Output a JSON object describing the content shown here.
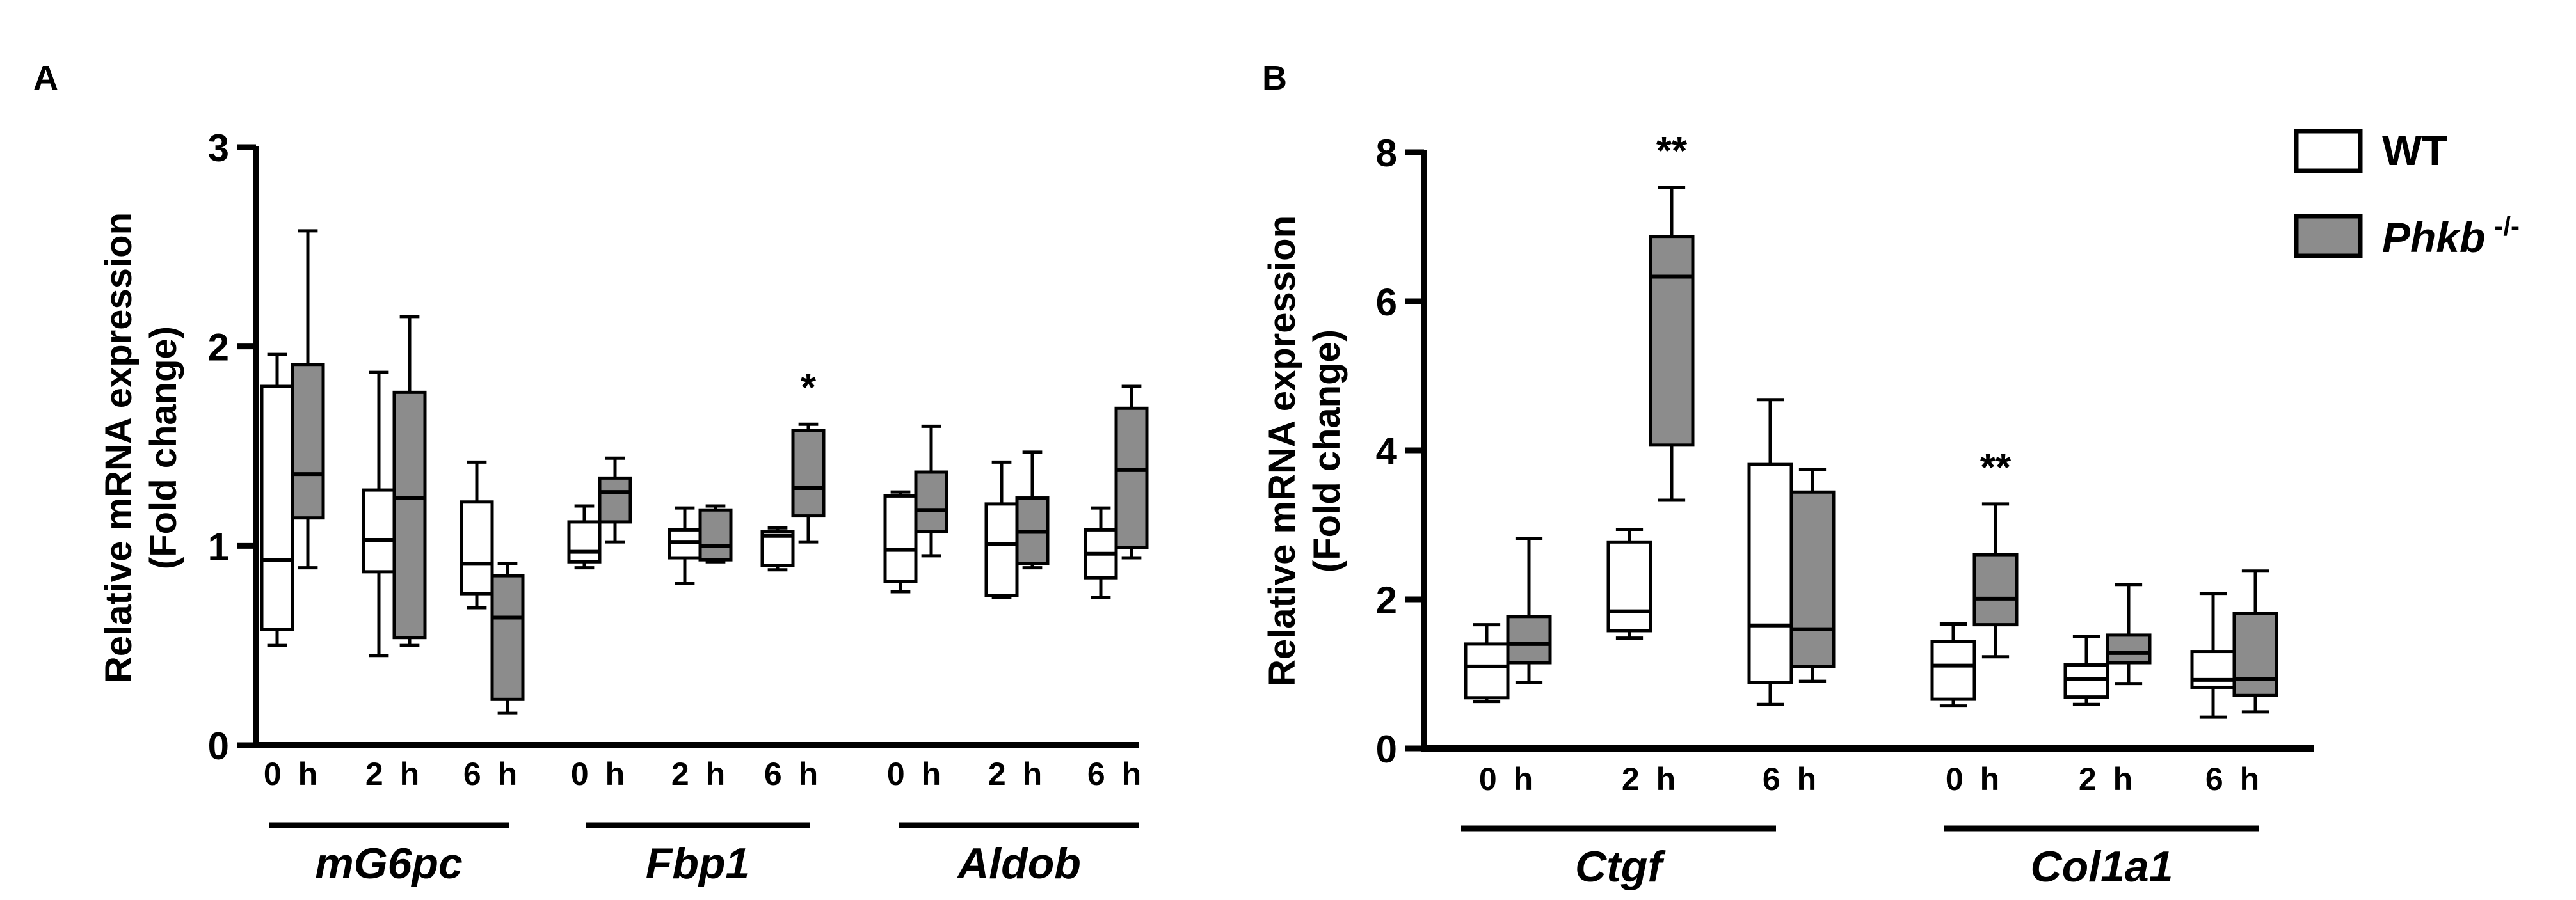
{
  "figure": {
    "legend": {
      "entries": [
        {
          "label": "WT",
          "superscript": "",
          "fill": "#ffffff"
        },
        {
          "label": "Phkb",
          "superscript": "-/-",
          "fill": "#8c8c8c"
        }
      ]
    }
  },
  "chart_data": [
    {
      "panel": "A",
      "type": "boxplot",
      "ylabel": "Relative mRNA expression",
      "ylabel2": "(Fold change)",
      "ylim": [
        0,
        3
      ],
      "yticks": [
        "0",
        "1",
        "2",
        "3"
      ],
      "series_names": [
        "WT",
        "Phkb -/-"
      ],
      "groups": [
        {
          "name": "mG6pc",
          "timepoints": [
            {
              "label": "0 h",
              "annotation": "",
              "wt": {
                "min": 0.5,
                "q1": 0.58,
                "median": 0.93,
                "q3": 1.8,
                "max": 1.96
              },
              "ko": {
                "min": 0.89,
                "q1": 1.14,
                "median": 1.36,
                "q3": 1.91,
                "max": 2.58
              }
            },
            {
              "label": "2 h",
              "annotation": "",
              "wt": {
                "min": 0.45,
                "q1": 0.87,
                "median": 1.03,
                "q3": 1.28,
                "max": 1.87
              },
              "ko": {
                "min": 0.5,
                "q1": 0.54,
                "median": 1.24,
                "q3": 1.77,
                "max": 2.15
              }
            },
            {
              "label": "6 h",
              "annotation": "",
              "wt": {
                "min": 0.69,
                "q1": 0.76,
                "median": 0.91,
                "q3": 1.22,
                "max": 1.42
              },
              "ko": {
                "min": 0.16,
                "q1": 0.23,
                "median": 0.64,
                "q3": 0.85,
                "max": 0.91
              }
            }
          ]
        },
        {
          "name": "Fbp1",
          "timepoints": [
            {
              "label": "0 h",
              "annotation": "",
              "wt": {
                "min": 0.89,
                "q1": 0.92,
                "median": 0.97,
                "q3": 1.12,
                "max": 1.2
              },
              "ko": {
                "min": 1.02,
                "q1": 1.12,
                "median": 1.27,
                "q3": 1.34,
                "max": 1.44
              }
            },
            {
              "label": "2 h",
              "annotation": "",
              "wt": {
                "min": 0.81,
                "q1": 0.94,
                "median": 1.02,
                "q3": 1.08,
                "max": 1.19
              },
              "ko": {
                "min": 0.92,
                "q1": 0.93,
                "median": 1.0,
                "q3": 1.18,
                "max": 1.2
              }
            },
            {
              "label": "6 h",
              "annotation": "*",
              "wt": {
                "min": 0.88,
                "q1": 0.9,
                "median": 1.05,
                "q3": 1.07,
                "max": 1.09
              },
              "ko": {
                "min": 1.02,
                "q1": 1.15,
                "median": 1.29,
                "q3": 1.58,
                "max": 1.61
              }
            }
          ]
        },
        {
          "name": "Aldob",
          "timepoints": [
            {
              "label": "0 h",
              "annotation": "",
              "wt": {
                "min": 0.77,
                "q1": 0.82,
                "median": 0.98,
                "q3": 1.25,
                "max": 1.27
              },
              "ko": {
                "min": 0.95,
                "q1": 1.07,
                "median": 1.18,
                "q3": 1.37,
                "max": 1.6
              }
            },
            {
              "label": "2 h",
              "annotation": "",
              "wt": {
                "min": 0.74,
                "q1": 0.75,
                "median": 1.01,
                "q3": 1.21,
                "max": 1.42
              },
              "ko": {
                "min": 0.89,
                "q1": 0.91,
                "median": 1.07,
                "q3": 1.24,
                "max": 1.47
              }
            },
            {
              "label": "6 h",
              "annotation": "",
              "wt": {
                "min": 0.74,
                "q1": 0.84,
                "median": 0.96,
                "q3": 1.08,
                "max": 1.19
              },
              "ko": {
                "min": 0.94,
                "q1": 0.99,
                "median": 1.38,
                "q3": 1.69,
                "max": 1.8
              }
            }
          ]
        }
      ]
    },
    {
      "panel": "B",
      "type": "boxplot",
      "ylabel": "Relative mRNA expression",
      "ylabel2": "(Fold change)",
      "ylim": [
        0,
        8
      ],
      "yticks": [
        "0",
        "2",
        "4",
        "6",
        "8"
      ],
      "series_names": [
        "WT",
        "Phkb -/-"
      ],
      "groups": [
        {
          "name": "Ctgf",
          "timepoints": [
            {
              "label": "0 h",
              "annotation": "",
              "wt": {
                "min": 0.63,
                "q1": 0.68,
                "median": 1.1,
                "q3": 1.4,
                "max": 1.66
              },
              "ko": {
                "min": 0.88,
                "q1": 1.15,
                "median": 1.4,
                "q3": 1.77,
                "max": 2.82
              }
            },
            {
              "label": "2 h",
              "annotation": "**",
              "wt": {
                "min": 1.48,
                "q1": 1.58,
                "median": 1.84,
                "q3": 2.77,
                "max": 2.94
              },
              "ko": {
                "min": 3.33,
                "q1": 4.07,
                "median": 6.33,
                "q3": 6.87,
                "max": 7.53
              }
            },
            {
              "label": "6 h",
              "annotation": "",
              "wt": {
                "min": 0.59,
                "q1": 0.88,
                "median": 1.65,
                "q3": 3.81,
                "max": 4.68
              },
              "ko": {
                "min": 0.9,
                "q1": 1.1,
                "median": 1.6,
                "q3": 3.44,
                "max": 3.74
              }
            }
          ]
        },
        {
          "name": "Col1a1",
          "timepoints": [
            {
              "label": "0 h",
              "annotation": "**",
              "wt": {
                "min": 0.57,
                "q1": 0.66,
                "median": 1.11,
                "q3": 1.43,
                "max": 1.67
              },
              "ko": {
                "min": 1.23,
                "q1": 1.66,
                "median": 2.01,
                "q3": 2.6,
                "max": 3.28
              }
            },
            {
              "label": "2 h",
              "annotation": "",
              "wt": {
                "min": 0.59,
                "q1": 0.69,
                "median": 0.93,
                "q3": 1.12,
                "max": 1.5
              },
              "ko": {
                "min": 0.87,
                "q1": 1.15,
                "median": 1.28,
                "q3": 1.52,
                "max": 2.2
              }
            },
            {
              "label": "6 h",
              "annotation": "",
              "wt": {
                "min": 0.42,
                "q1": 0.82,
                "median": 0.92,
                "q3": 1.3,
                "max": 2.08
              },
              "ko": {
                "min": 0.49,
                "q1": 0.71,
                "median": 0.93,
                "q3": 1.81,
                "max": 2.38
              }
            }
          ]
        }
      ]
    }
  ]
}
